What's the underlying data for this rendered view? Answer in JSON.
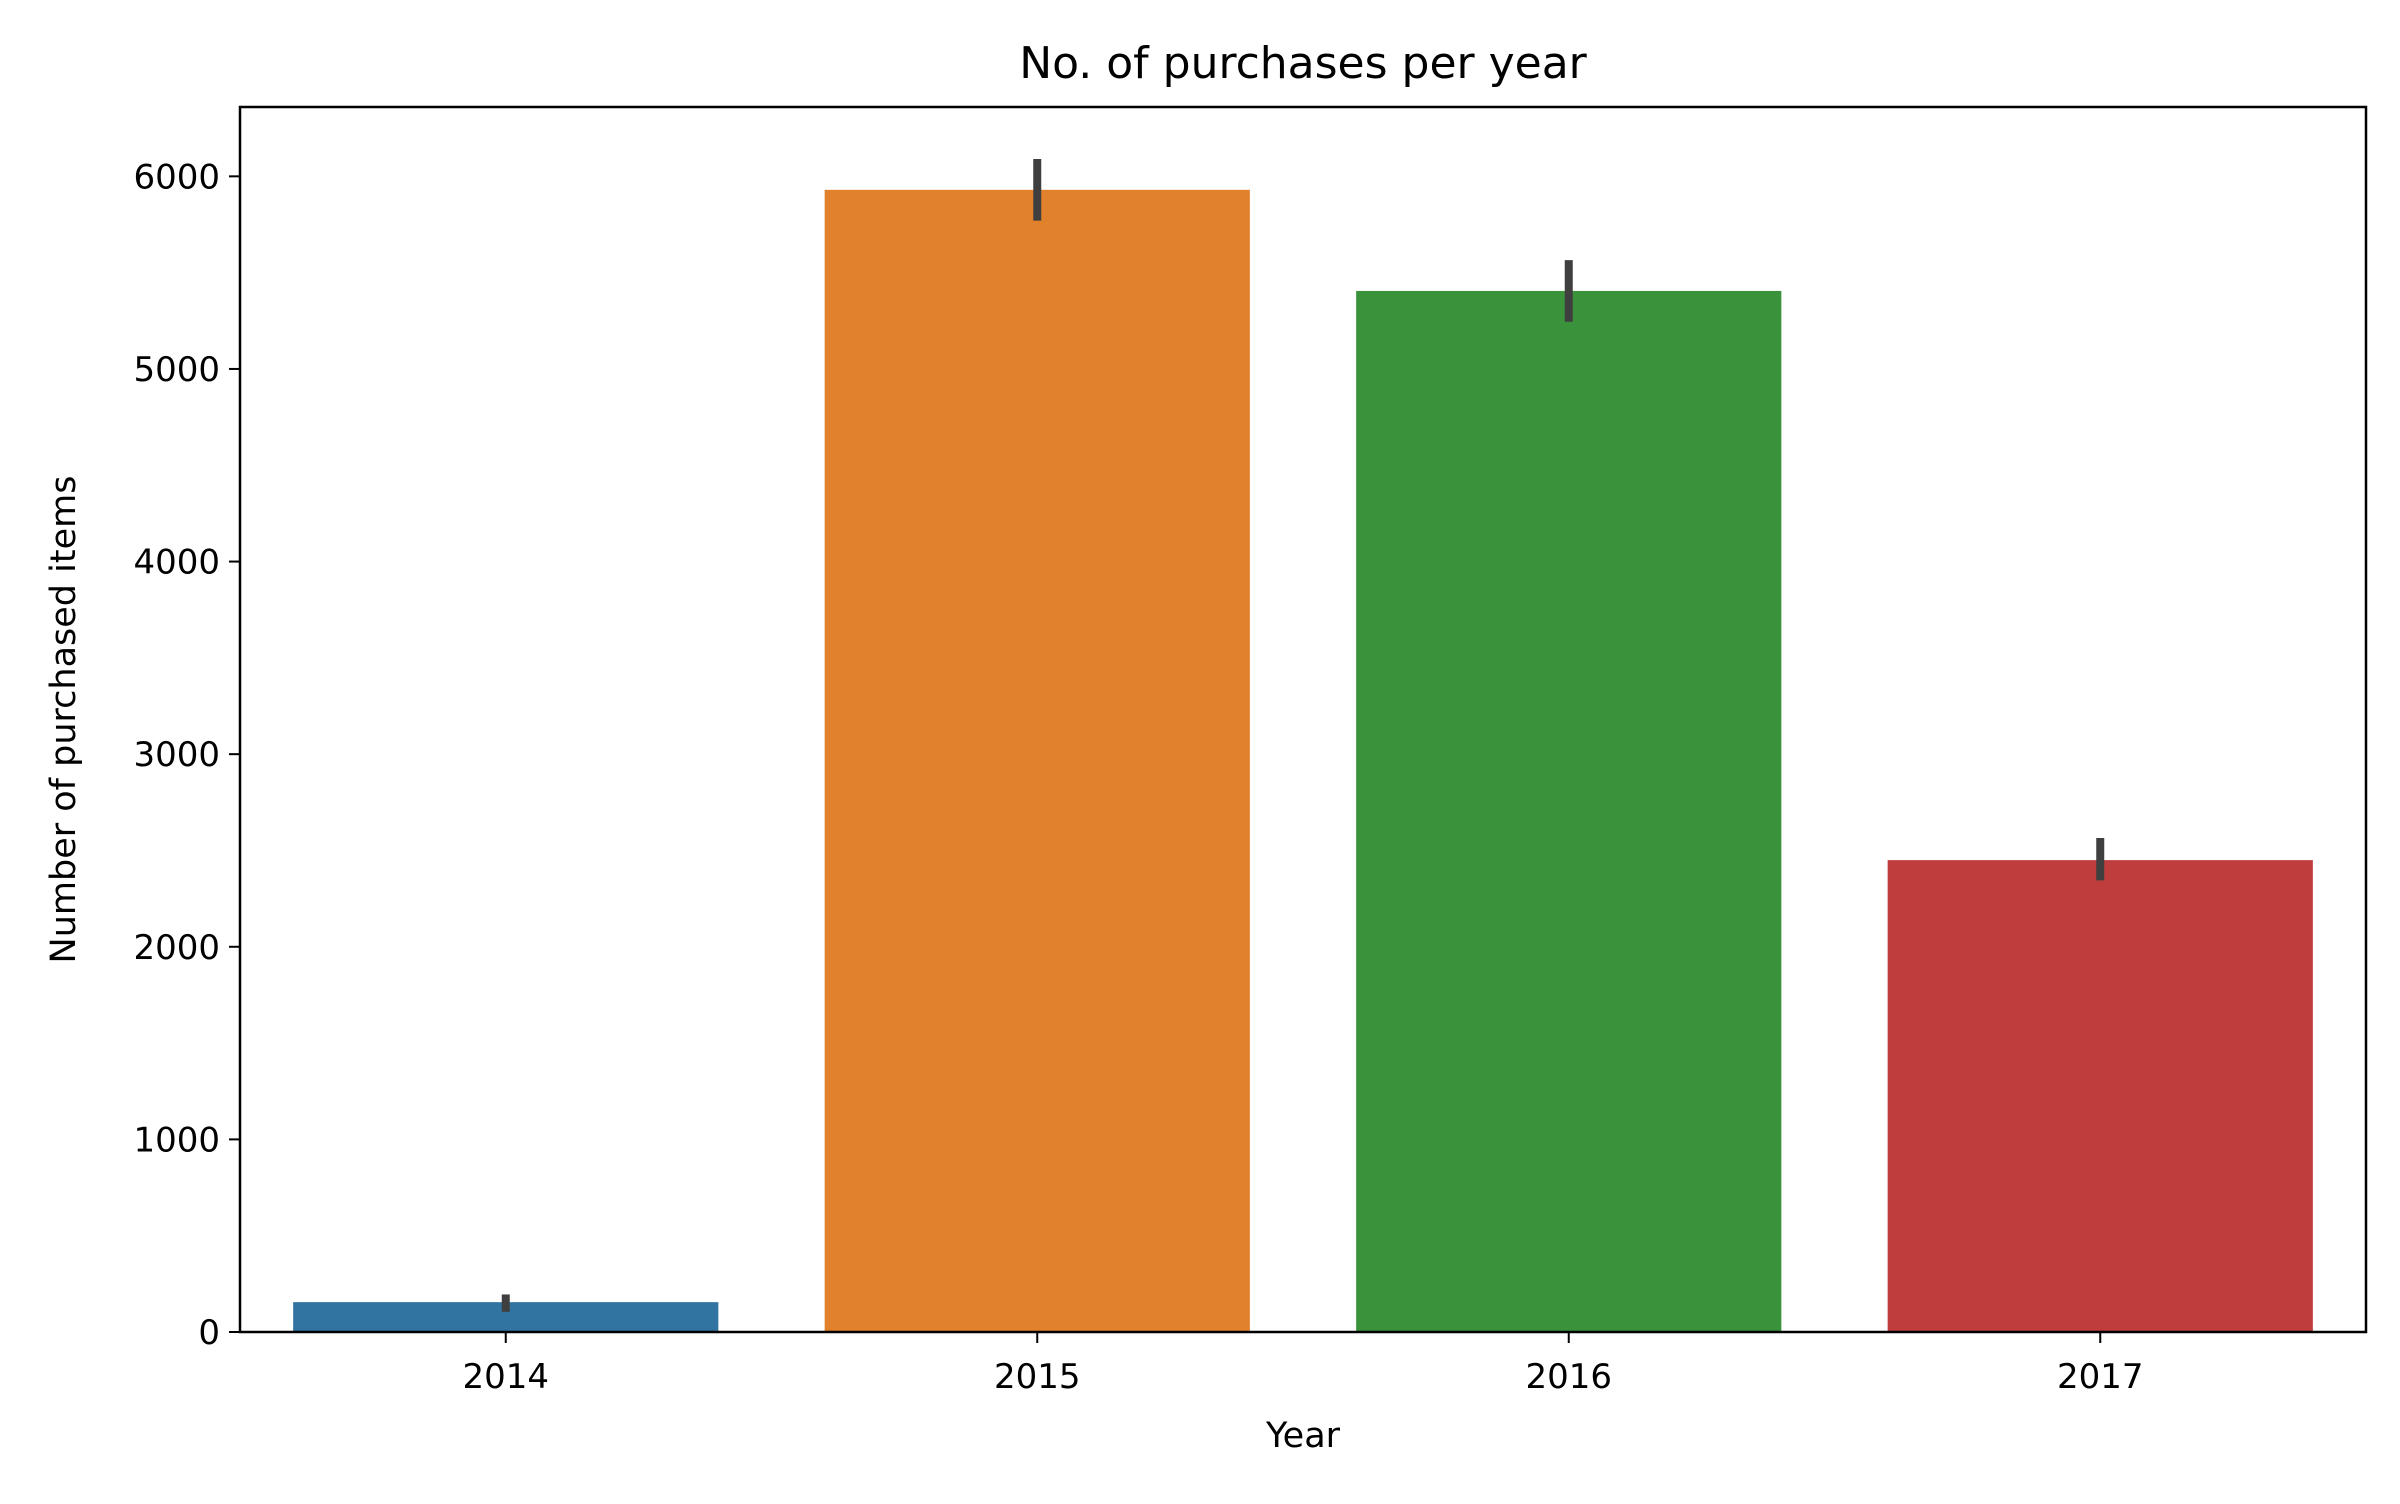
{
  "chart_data": {
    "type": "bar",
    "title": "No. of purchases per year",
    "xlabel": "Year",
    "ylabel": "Number of purchased items",
    "categories": [
      "2014",
      "2015",
      "2016",
      "2017"
    ],
    "values": [
      155,
      5930,
      5405,
      2450
    ],
    "error_bars": [
      {
        "low": 105,
        "high": 195
      },
      {
        "low": 5770,
        "high": 6090
      },
      {
        "low": 5245,
        "high": 5565
      },
      {
        "low": 2345,
        "high": 2565
      }
    ],
    "colors": [
      "#3274a1",
      "#e1812c",
      "#3a923a",
      "#c03d3e"
    ],
    "error_bar_color": "#3f3f3f",
    "ylim": [
      0,
      6360
    ],
    "yticks": [
      0,
      1000,
      2000,
      3000,
      4000,
      5000,
      6000
    ],
    "grid": false,
    "legend": "none"
  }
}
